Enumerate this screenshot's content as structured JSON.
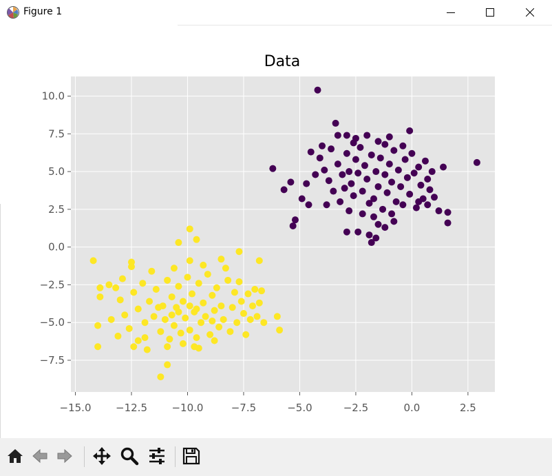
{
  "window": {
    "title": "Figure 1",
    "icons": {
      "app": "matplotlib-logo-icon",
      "minimize": "minimize-icon",
      "maximize": "maximize-icon",
      "close": "close-icon"
    }
  },
  "toolbar": {
    "buttons": [
      {
        "name": "home-button",
        "icon": "home-icon"
      },
      {
        "name": "back-button",
        "icon": "arrow-left-icon"
      },
      {
        "name": "forward-button",
        "icon": "arrow-right-icon"
      },
      {
        "name": "pan-button",
        "icon": "move-arrows-icon"
      },
      {
        "name": "zoom-button",
        "icon": "magnifier-icon"
      },
      {
        "name": "configure-subplots-button",
        "icon": "sliders-icon"
      },
      {
        "name": "save-button",
        "icon": "floppy-disk-icon"
      }
    ]
  },
  "chart_data": {
    "type": "scatter",
    "title": "Data",
    "xlabel": "",
    "ylabel": "",
    "xlim": [
      -15.2,
      3.7
    ],
    "ylim": [
      -9.6,
      11.3
    ],
    "xticks": [
      -15.0,
      -12.5,
      -10.0,
      -7.5,
      -5.0,
      -2.5,
      0.0,
      2.5
    ],
    "yticks": [
      -7.5,
      -5.0,
      -2.5,
      0.0,
      2.5,
      5.0,
      7.5,
      10.0
    ],
    "xtick_labels": [
      "−15.0",
      "−12.5",
      "−10.0",
      "−7.5",
      "−5.0",
      "−2.5",
      "0.0",
      "2.5"
    ],
    "ytick_labels": [
      "−7.5",
      "−5.0",
      "−2.5",
      "0.0",
      "2.5",
      "5.0",
      "7.5",
      "10.0"
    ],
    "grid": true,
    "style": "ggplot",
    "colors": {
      "background": "#e5e5e5",
      "grid": "#ffffff",
      "cluster_a": "#440154",
      "cluster_b": "#fde725"
    },
    "series": [
      {
        "color": "#440154",
        "points": [
          [
            -4.2,
            10.4
          ],
          [
            2.9,
            5.6
          ],
          [
            -6.2,
            5.2
          ],
          [
            -5.7,
            3.8
          ],
          [
            -5.4,
            4.3
          ],
          [
            -5.2,
            1.8
          ],
          [
            -5.3,
            1.4
          ],
          [
            -4.9,
            3.2
          ],
          [
            -4.6,
            2.8
          ],
          [
            -4.7,
            4.2
          ],
          [
            -4.5,
            6.3
          ],
          [
            -4.0,
            6.7
          ],
          [
            -3.4,
            8.2
          ],
          [
            -3.3,
            7.4
          ],
          [
            -2.9,
            7.4
          ],
          [
            -2.5,
            7.2
          ],
          [
            -2.0,
            7.4
          ],
          [
            -1.5,
            7.0
          ],
          [
            -1.0,
            7.3
          ],
          [
            -0.1,
            7.7
          ],
          [
            -1.9,
            0.8
          ],
          [
            -2.4,
            1.0
          ],
          [
            -1.8,
            0.3
          ],
          [
            -1.6,
            0.6
          ],
          [
            -1.2,
            1.3
          ],
          [
            -0.8,
            1.7
          ],
          [
            1.6,
            2.3
          ],
          [
            1.6,
            1.6
          ],
          [
            1.2,
            2.4
          ],
          [
            1.0,
            3.3
          ],
          [
            1.4,
            5.3
          ],
          [
            -2.9,
            1.0
          ],
          [
            0.3,
            3.0
          ],
          [
            -4.1,
            5.9
          ],
          [
            -3.9,
            5.1
          ],
          [
            -3.7,
            4.4
          ],
          [
            -3.5,
            3.7
          ],
          [
            -3.3,
            5.5
          ],
          [
            -3.1,
            4.8
          ],
          [
            -3.0,
            3.9
          ],
          [
            -2.9,
            6.2
          ],
          [
            -2.8,
            5.0
          ],
          [
            -2.7,
            4.2
          ],
          [
            -2.6,
            3.4
          ],
          [
            -2.5,
            5.8
          ],
          [
            -2.4,
            4.9
          ],
          [
            -2.3,
            6.6
          ],
          [
            -2.2,
            3.7
          ],
          [
            -2.1,
            5.4
          ],
          [
            -2.0,
            4.5
          ],
          [
            -1.9,
            2.9
          ],
          [
            -1.8,
            6.1
          ],
          [
            -1.7,
            3.2
          ],
          [
            -1.6,
            5.0
          ],
          [
            -1.5,
            4.0
          ],
          [
            -1.4,
            5.9
          ],
          [
            -1.3,
            2.5
          ],
          [
            -1.2,
            4.8
          ],
          [
            -1.1,
            3.6
          ],
          [
            -1.0,
            5.5
          ],
          [
            -0.9,
            4.3
          ],
          [
            -0.8,
            6.4
          ],
          [
            -0.7,
            3.0
          ],
          [
            -0.6,
            5.1
          ],
          [
            -0.5,
            4.0
          ],
          [
            -0.4,
            2.8
          ],
          [
            -0.3,
            5.8
          ],
          [
            -0.2,
            4.6
          ],
          [
            -0.1,
            3.5
          ],
          [
            0.0,
            6.2
          ],
          [
            0.1,
            4.9
          ],
          [
            0.2,
            2.6
          ],
          [
            0.3,
            5.3
          ],
          [
            0.4,
            4.1
          ],
          [
            0.5,
            3.2
          ],
          [
            0.6,
            5.7
          ],
          [
            0.7,
            4.5
          ],
          [
            0.8,
            3.8
          ],
          [
            0.9,
            5.0
          ],
          [
            -3.6,
            6.5
          ],
          [
            -2.8,
            2.4
          ],
          [
            -1.7,
            2.0
          ],
          [
            -0.9,
            2.2
          ],
          [
            -2.6,
            6.9
          ],
          [
            -1.2,
            6.8
          ],
          [
            -3.8,
            2.8
          ],
          [
            -4.3,
            4.8
          ],
          [
            -2.2,
            2.2
          ],
          [
            -0.4,
            6.7
          ],
          [
            0.7,
            2.8
          ],
          [
            -3.2,
            3.0
          ],
          [
            -1.5,
            1.5
          ]
        ]
      },
      {
        "color": "#fde725",
        "points": [
          [
            -14.2,
            -0.9
          ],
          [
            -13.9,
            -2.7
          ],
          [
            -13.9,
            -3.3
          ],
          [
            -14.0,
            -5.2
          ],
          [
            -14.0,
            -6.6
          ],
          [
            -13.5,
            -2.5
          ],
          [
            -13.2,
            -2.7
          ],
          [
            -12.5,
            -1.0
          ],
          [
            -12.5,
            -1.3
          ],
          [
            -9.9,
            1.2
          ],
          [
            -10.4,
            0.3
          ],
          [
            -9.6,
            0.5
          ],
          [
            -7.7,
            -0.3
          ],
          [
            -6.8,
            -0.9
          ],
          [
            -6.0,
            -4.6
          ],
          [
            -5.9,
            -5.5
          ],
          [
            -11.2,
            -8.6
          ],
          [
            -10.9,
            -7.8
          ],
          [
            -11.8,
            -6.8
          ],
          [
            -12.4,
            -6.6
          ],
          [
            -12.2,
            -6.2
          ],
          [
            -7.4,
            -5.8
          ],
          [
            -7.0,
            -2.8
          ],
          [
            -13.0,
            -3.5
          ],
          [
            -12.8,
            -4.5
          ],
          [
            -12.6,
            -5.4
          ],
          [
            -12.4,
            -3.0
          ],
          [
            -12.2,
            -4.1
          ],
          [
            -12.0,
            -2.4
          ],
          [
            -11.9,
            -5.0
          ],
          [
            -11.7,
            -3.6
          ],
          [
            -11.5,
            -4.6
          ],
          [
            -11.4,
            -2.8
          ],
          [
            -11.2,
            -5.6
          ],
          [
            -11.1,
            -3.9
          ],
          [
            -11.0,
            -4.8
          ],
          [
            -10.9,
            -2.2
          ],
          [
            -10.8,
            -6.1
          ],
          [
            -10.7,
            -3.3
          ],
          [
            -10.6,
            -5.2
          ],
          [
            -10.5,
            -4.0
          ],
          [
            -10.4,
            -2.6
          ],
          [
            -10.3,
            -5.7
          ],
          [
            -10.2,
            -3.6
          ],
          [
            -10.1,
            -4.7
          ],
          [
            -10.0,
            -2.0
          ],
          [
            -9.9,
            -5.5
          ],
          [
            -9.8,
            -3.1
          ],
          [
            -9.7,
            -4.3
          ],
          [
            -9.6,
            -6.0
          ],
          [
            -9.5,
            -2.4
          ],
          [
            -9.4,
            -5.0
          ],
          [
            -9.3,
            -3.7
          ],
          [
            -9.2,
            -4.6
          ],
          [
            -9.1,
            -1.8
          ],
          [
            -9.0,
            -5.8
          ],
          [
            -8.9,
            -3.2
          ],
          [
            -8.8,
            -4.2
          ],
          [
            -8.7,
            -2.7
          ],
          [
            -8.6,
            -5.3
          ],
          [
            -8.5,
            -3.9
          ],
          [
            -8.4,
            -4.8
          ],
          [
            -8.3,
            -1.4
          ],
          [
            -8.2,
            -2.2
          ],
          [
            -8.0,
            -4.0
          ],
          [
            -7.9,
            -3.0
          ],
          [
            -7.8,
            -5.0
          ],
          [
            -7.7,
            -2.3
          ],
          [
            -7.6,
            -3.6
          ],
          [
            -7.5,
            -4.4
          ],
          [
            -7.3,
            -3.1
          ],
          [
            -7.2,
            -4.8
          ],
          [
            -7.1,
            -3.9
          ],
          [
            -6.9,
            -4.6
          ],
          [
            -6.8,
            -3.7
          ],
          [
            -6.7,
            -2.9
          ],
          [
            -6.6,
            -5.0
          ],
          [
            -13.4,
            -4.8
          ],
          [
            -13.1,
            -5.9
          ],
          [
            -12.9,
            -2.1
          ],
          [
            -11.6,
            -1.6
          ],
          [
            -10.6,
            -1.4
          ],
          [
            -9.9,
            -0.9
          ],
          [
            -9.3,
            -1.2
          ],
          [
            -8.5,
            -0.8
          ],
          [
            -10.9,
            -6.6
          ],
          [
            -10.2,
            -6.4
          ],
          [
            -9.5,
            -6.7
          ],
          [
            -8.8,
            -6.2
          ],
          [
            -8.1,
            -5.6
          ],
          [
            -11.9,
            -6.0
          ],
          [
            -9.7,
            -6.6
          ],
          [
            -10.4,
            -4.3
          ],
          [
            -9.9,
            -3.9
          ],
          [
            -9.6,
            -4.1
          ],
          [
            -10.7,
            -4.5
          ],
          [
            -11.3,
            -4.0
          ],
          [
            -8.9,
            -4.9
          ]
        ]
      }
    ]
  }
}
